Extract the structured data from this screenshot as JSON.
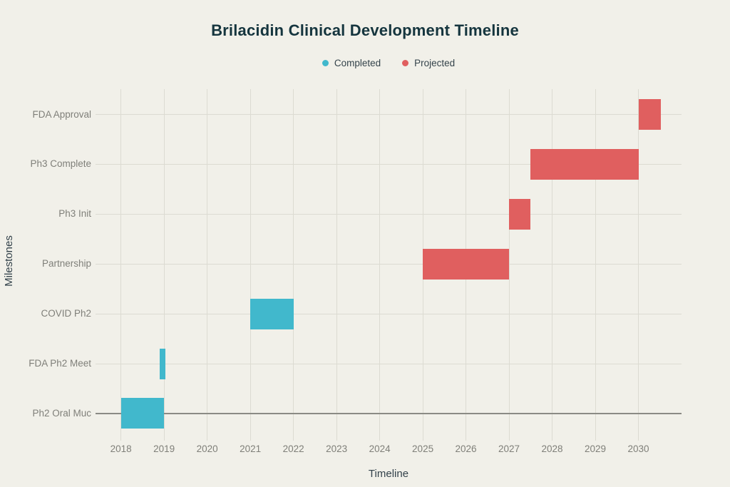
{
  "header": {
    "title": "Brilacidin Clinical Development Timeline"
  },
  "legend": {
    "items": [
      {
        "label": "Completed",
        "status": "completed",
        "color": "#41b8cc"
      },
      {
        "label": "Projected",
        "status": "projected",
        "color": "#e05f5f"
      }
    ]
  },
  "axes": {
    "x_title": "Timeline",
    "y_title": "Milestones"
  },
  "colors": {
    "background": "#f1f0e9",
    "grid": "#dcdbd2",
    "zeroline": "#8b8b85",
    "tick_label": "#7f7f79",
    "title": "#15353e",
    "axis_title": "#32414a",
    "completed": "#41b8cc",
    "projected": "#e05f5f"
  },
  "chart_data": {
    "type": "bar",
    "subtype": "gantt",
    "orientation": "horizontal",
    "title": "Brilacidin Clinical Development Timeline",
    "xlabel": "Timeline",
    "ylabel": "Milestones",
    "grid": true,
    "legend_position": "top-center",
    "x_ticks": [
      2018,
      2019,
      2020,
      2021,
      2022,
      2023,
      2024,
      2025,
      2026,
      2027,
      2028,
      2029,
      2030
    ],
    "x_range": [
      2017.41,
      2031.0
    ],
    "categories_top_to_bottom": [
      "FDA Approval",
      "Ph3 Complete",
      "Ph3 Init",
      "Partnership",
      "COVID Ph2",
      "FDA Ph2 Meet",
      "Ph2 Oral Muc"
    ],
    "tasks": [
      {
        "label": "FDA Approval",
        "start": 2030.0,
        "end": 2030.52,
        "status": "projected"
      },
      {
        "label": "Ph3 Complete",
        "start": 2027.5,
        "end": 2030.0,
        "status": "projected"
      },
      {
        "label": "Ph3 Init",
        "start": 2027.0,
        "end": 2027.5,
        "status": "projected"
      },
      {
        "label": "Partnership",
        "start": 2025.0,
        "end": 2027.0,
        "status": "projected"
      },
      {
        "label": "COVID Ph2",
        "start": 2021.0,
        "end": 2022.0,
        "status": "completed"
      },
      {
        "label": "FDA Ph2 Meet",
        "start": 2018.9,
        "end": 2019.03,
        "status": "completed"
      },
      {
        "label": "Ph2 Oral Muc",
        "start": 2018.0,
        "end": 2019.0,
        "status": "completed"
      }
    ]
  }
}
